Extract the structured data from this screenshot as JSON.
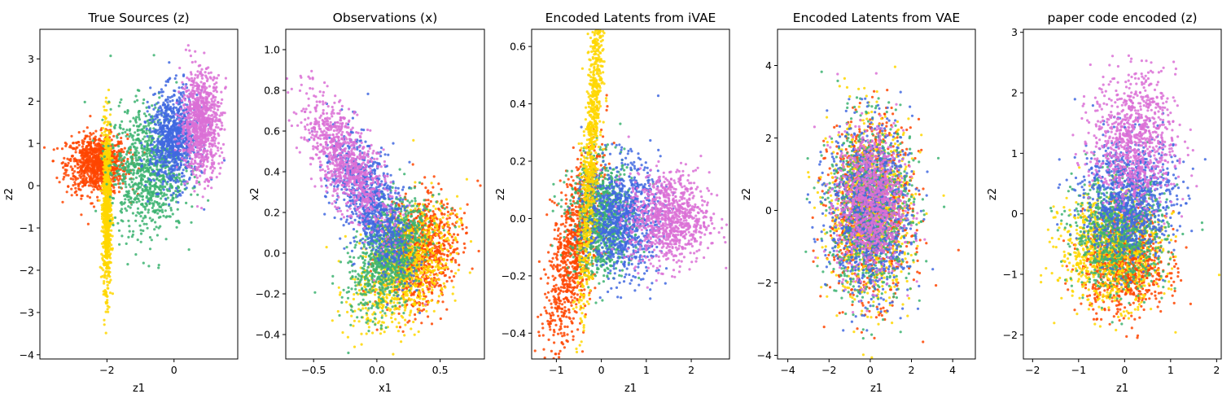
{
  "chart_data": [
    {
      "type": "scatter",
      "title": "True Sources (z)",
      "xlabel": "z1",
      "ylabel": "z2",
      "xlim": [
        -4.0,
        1.9
      ],
      "ylim": [
        -4.1,
        3.7
      ],
      "xticks": [
        -2,
        0
      ],
      "yticks": [
        -4,
        -3,
        -2,
        -1,
        0,
        1,
        2,
        3
      ],
      "grid": false,
      "series": [
        {
          "color": "#ff4500",
          "center": [
            -2.3,
            0.5
          ],
          "spread": [
            0.45,
            0.35
          ],
          "rotation": 0
        },
        {
          "color": "#ffd700",
          "center": [
            -2.0,
            -0.5
          ],
          "spread": [
            0.06,
            0.95
          ],
          "rotation": 0
        },
        {
          "color": "#3cb371",
          "center": [
            -0.8,
            0.4
          ],
          "spread": [
            0.55,
            0.75
          ],
          "rotation": 0
        },
        {
          "color": "#4169e1",
          "center": [
            0.0,
            1.1
          ],
          "spread": [
            0.35,
            0.55
          ],
          "rotation": 0
        },
        {
          "color": "#da70d6",
          "center": [
            0.8,
            1.5
          ],
          "spread": [
            0.3,
            0.6
          ],
          "rotation": 0
        }
      ]
    },
    {
      "type": "scatter",
      "title": "Observations (x)",
      "xlabel": "x1",
      "ylabel": "x2",
      "xlim": [
        -0.72,
        0.85
      ],
      "ylim": [
        -0.52,
        1.1
      ],
      "xticks": [
        -0.5,
        0.0,
        0.5
      ],
      "yticks": [
        -0.4,
        -0.2,
        0.0,
        0.2,
        0.4,
        0.6,
        0.8,
        1.0
      ],
      "grid": false,
      "series": [
        {
          "color": "#ff4500",
          "center": [
            0.35,
            0.0
          ],
          "spread": [
            0.16,
            0.12
          ],
          "rotation": 0.6
        },
        {
          "color": "#ffd700",
          "center": [
            0.2,
            -0.08
          ],
          "spread": [
            0.2,
            0.12
          ],
          "rotation": 0.5
        },
        {
          "color": "#3cb371",
          "center": [
            0.1,
            0.0
          ],
          "spread": [
            0.17,
            0.11
          ],
          "rotation": 0.7
        },
        {
          "color": "#4169e1",
          "center": [
            -0.05,
            0.25
          ],
          "spread": [
            0.2,
            0.1
          ],
          "rotation": -0.8
        },
        {
          "color": "#da70d6",
          "center": [
            -0.25,
            0.45
          ],
          "spread": [
            0.22,
            0.09
          ],
          "rotation": -0.75
        }
      ]
    },
    {
      "type": "scatter",
      "title": "Encoded Latents from iVAE",
      "xlabel": "z1",
      "ylabel": "z2",
      "xlim": [
        -1.55,
        2.85
      ],
      "ylim": [
        -0.49,
        0.66
      ],
      "xticks": [
        -1,
        0,
        1,
        2
      ],
      "yticks": [
        -0.4,
        -0.2,
        0.0,
        0.2,
        0.4,
        0.6
      ],
      "grid": false,
      "series": [
        {
          "color": "#ff4500",
          "center": [
            -0.6,
            -0.1
          ],
          "spread": [
            0.35,
            0.12
          ],
          "rotation": 0.4
        },
        {
          "color": "#3cb371",
          "center": [
            0.0,
            0.0
          ],
          "spread": [
            0.35,
            0.1
          ],
          "rotation": 0
        },
        {
          "color": "#4169e1",
          "center": [
            0.5,
            0.0
          ],
          "spread": [
            0.4,
            0.1
          ],
          "rotation": 0
        },
        {
          "color": "#da70d6",
          "center": [
            1.5,
            0.0
          ],
          "spread": [
            0.45,
            0.08
          ],
          "rotation": 0
        },
        {
          "color": "#ffd700",
          "center": [
            -0.2,
            0.3
          ],
          "spread": [
            0.35,
            0.08
          ],
          "rotation": 1.2
        }
      ]
    },
    {
      "type": "scatter",
      "title": "Encoded Latents from VAE",
      "xlabel": "z1",
      "ylabel": "z2",
      "xlim": [
        -4.5,
        5.1
      ],
      "ylim": [
        -4.1,
        5.0
      ],
      "xticks": [
        -4,
        -2,
        0,
        2,
        4
      ],
      "yticks": [
        -4,
        -2,
        0,
        2,
        4
      ],
      "grid": false,
      "series": [
        {
          "color": "#ff4500",
          "center": [
            0.0,
            0.0
          ],
          "spread": [
            1.0,
            1.2
          ],
          "rotation": 0
        },
        {
          "color": "#ffd700",
          "center": [
            0.0,
            0.0
          ],
          "spread": [
            1.0,
            1.2
          ],
          "rotation": 0
        },
        {
          "color": "#3cb371",
          "center": [
            0.0,
            0.0
          ],
          "spread": [
            1.0,
            1.2
          ],
          "rotation": 0
        },
        {
          "color": "#4169e1",
          "center": [
            0.0,
            0.0
          ],
          "spread": [
            1.0,
            1.2
          ],
          "rotation": 0
        },
        {
          "color": "#da70d6",
          "center": [
            0.0,
            0.2
          ],
          "spread": [
            0.8,
            1.0
          ],
          "rotation": 0
        }
      ]
    },
    {
      "type": "scatter",
      "title": "paper code encoded (z)",
      "xlabel": "z1",
      "ylabel": "z2",
      "xlim": [
        -2.2,
        2.1
      ],
      "ylim": [
        -2.4,
        3.05
      ],
      "xticks": [
        -2,
        -1,
        0,
        1,
        2
      ],
      "yticks": [
        -2,
        -1,
        0,
        1,
        2,
        3
      ],
      "grid": false,
      "series": [
        {
          "color": "#ff4500",
          "center": [
            0.0,
            -0.8
          ],
          "spread": [
            0.45,
            0.4
          ],
          "rotation": 0
        },
        {
          "color": "#ffd700",
          "center": [
            -0.3,
            -0.6
          ],
          "spread": [
            0.55,
            0.45
          ],
          "rotation": 0
        },
        {
          "color": "#3cb371",
          "center": [
            -0.1,
            -0.3
          ],
          "spread": [
            0.5,
            0.45
          ],
          "rotation": 0
        },
        {
          "color": "#4169e1",
          "center": [
            0.1,
            0.3
          ],
          "spread": [
            0.5,
            0.5
          ],
          "rotation": 0
        },
        {
          "color": "#da70d6",
          "center": [
            0.2,
            1.2
          ],
          "spread": [
            0.45,
            0.55
          ],
          "rotation": 0
        }
      ]
    }
  ]
}
